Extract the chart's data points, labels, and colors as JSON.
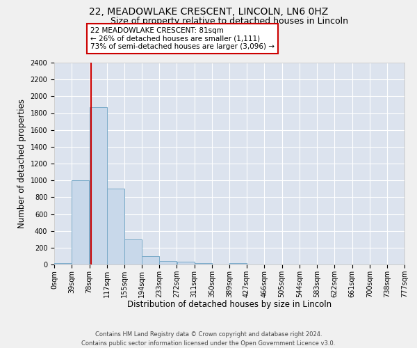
{
  "title_main": "22, MEADOWLAKE CRESCENT, LINCOLN, LN6 0HZ",
  "title_sub": "Size of property relative to detached houses in Lincoln",
  "xlabel": "Distribution of detached houses by size in Lincoln",
  "ylabel": "Number of detached properties",
  "bar_color": "#c8d8ea",
  "bar_edge_color": "#7aaac8",
  "plot_bg_color": "#dce3ee",
  "fig_bg_color": "#f0f0f0",
  "grid_color": "#ffffff",
  "bin_edges": [
    0,
    39,
    78,
    117,
    155,
    194,
    233,
    272,
    311,
    350,
    389,
    427,
    466,
    505,
    544,
    583,
    622,
    661,
    700,
    738,
    777
  ],
  "bin_labels": [
    "0sqm",
    "39sqm",
    "78sqm",
    "117sqm",
    "155sqm",
    "194sqm",
    "233sqm",
    "272sqm",
    "311sqm",
    "350sqm",
    "389sqm",
    "427sqm",
    "466sqm",
    "505sqm",
    "544sqm",
    "583sqm",
    "622sqm",
    "661sqm",
    "700sqm",
    "738sqm",
    "777sqm"
  ],
  "bar_heights": [
    20,
    1000,
    1870,
    900,
    300,
    100,
    40,
    30,
    20,
    0,
    20,
    0,
    0,
    0,
    0,
    0,
    0,
    0,
    0,
    0
  ],
  "ylim": [
    0,
    2400
  ],
  "yticks": [
    0,
    200,
    400,
    600,
    800,
    1000,
    1200,
    1400,
    1600,
    1800,
    2000,
    2200,
    2400
  ],
  "property_size": 81,
  "vline_color": "#cc0000",
  "annotation_title": "22 MEADOWLAKE CRESCENT: 81sqm",
  "annotation_line1": "← 26% of detached houses are smaller (1,111)",
  "annotation_line2": "73% of semi-detached houses are larger (3,096) →",
  "annotation_box_facecolor": "#ffffff",
  "annotation_box_edgecolor": "#cc0000",
  "footer_line1": "Contains HM Land Registry data © Crown copyright and database right 2024.",
  "footer_line2": "Contains public sector information licensed under the Open Government Licence v3.0.",
  "title_fontsize": 10,
  "subtitle_fontsize": 9,
  "axis_label_fontsize": 8.5,
  "tick_fontsize": 7,
  "annotation_fontsize": 7.5,
  "footer_fontsize": 6
}
